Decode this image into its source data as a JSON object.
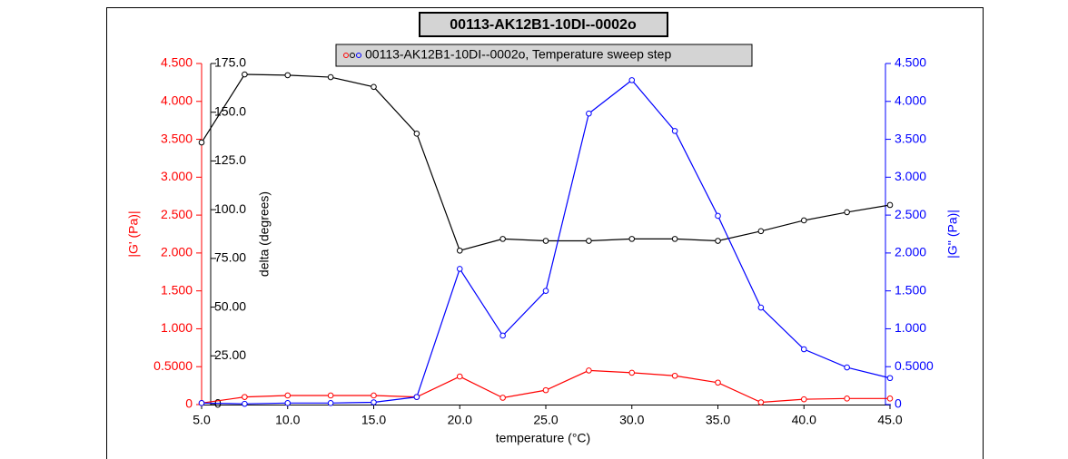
{
  "chart_data": {
    "type": "line",
    "title": "00113-AK12B1-10DI--0002o",
    "legend": "00113-AK12B1-10DI--0002o, Temperature sweep step",
    "xlabel": "temperature (°C)",
    "ylabel": "|G' (Pa)|",
    "y2label": "|G'' (Pa)|",
    "y3label": "delta (degrees)",
    "x": [
      5,
      7.5,
      10,
      12.5,
      15,
      17.5,
      20,
      22.5,
      25,
      27.5,
      30,
      32.5,
      35,
      37.5,
      40,
      42.5,
      45
    ],
    "xlim": [
      5,
      45
    ],
    "xticks": [
      {
        "value": 5,
        "label": "5.0"
      },
      {
        "value": 10,
        "label": "10.0"
      },
      {
        "value": 15,
        "label": "15.0"
      },
      {
        "value": 20,
        "label": "20.0"
      },
      {
        "value": 25,
        "label": "25.0"
      },
      {
        "value": 30,
        "label": "30.0"
      },
      {
        "value": 35,
        "label": "35.0"
      },
      {
        "value": 40,
        "label": "40.0"
      },
      {
        "value": 45,
        "label": "45.0"
      }
    ],
    "ylim": [
      0,
      4.5
    ],
    "yticks": [
      0,
      {
        "value": 0.5,
        "label": "0.5000"
      },
      {
        "value": 1,
        "label": "1.000"
      },
      {
        "value": 1.5,
        "label": "1.500"
      },
      {
        "value": 2,
        "label": "2.000"
      },
      {
        "value": 2.5,
        "label": "2.500"
      },
      {
        "value": 3,
        "label": "3.000"
      },
      {
        "value": 3.5,
        "label": "3.500"
      },
      {
        "value": 4,
        "label": "4.000"
      },
      {
        "value": 4.5,
        "label": "4.500"
      }
    ],
    "y2lim": [
      0,
      4.5
    ],
    "y2ticks": [
      0,
      {
        "value": 0.5,
        "label": "0.5000"
      },
      {
        "value": 1,
        "label": "1.000"
      },
      {
        "value": 1.5,
        "label": "1.500"
      },
      {
        "value": 2,
        "label": "2.000"
      },
      {
        "value": 2.5,
        "label": "2.500"
      },
      {
        "value": 3,
        "label": "3.000"
      },
      {
        "value": 3.5,
        "label": "3.500"
      },
      {
        "value": 4,
        "label": "4.000"
      },
      {
        "value": 4.5,
        "label": "4.500"
      }
    ],
    "y3lim": [
      0,
      175
    ],
    "y3ticks": [
      0,
      {
        "value": 25,
        "label": "25.00"
      },
      {
        "value": 50,
        "label": "50.00"
      },
      {
        "value": 75,
        "label": "75.00"
      },
      {
        "value": 100,
        "label": "100.0"
      },
      {
        "value": 125,
        "label": "125.0"
      },
      {
        "value": 150,
        "label": "150.0"
      },
      {
        "value": 175,
        "label": "175.0"
      }
    ],
    "series": [
      {
        "color": "#ff0000",
        "axis": "y",
        "values": [
          0.02,
          0.1,
          0.12,
          0.12,
          0.12,
          0.1,
          0.37,
          0.09,
          0.19,
          0.45,
          0.42,
          0.38,
          0.29,
          0.03,
          0.07,
          0.08,
          0.08
        ]
      },
      {
        "color": "#000000",
        "axis": "y3",
        "values": [
          134.5,
          169.4,
          169,
          168,
          163,
          139,
          79,
          85,
          84,
          84,
          85,
          85,
          84,
          89,
          94.5,
          98.7,
          102.4
        ]
      },
      {
        "color": "#0000ff",
        "axis": "y2",
        "values": [
          0.02,
          0.01,
          0.02,
          0.02,
          0.03,
          0.1,
          1.79,
          0.91,
          1.5,
          3.84,
          4.28,
          3.61,
          2.49,
          1.28,
          0.73,
          0.49,
          0.35
        ]
      }
    ]
  }
}
